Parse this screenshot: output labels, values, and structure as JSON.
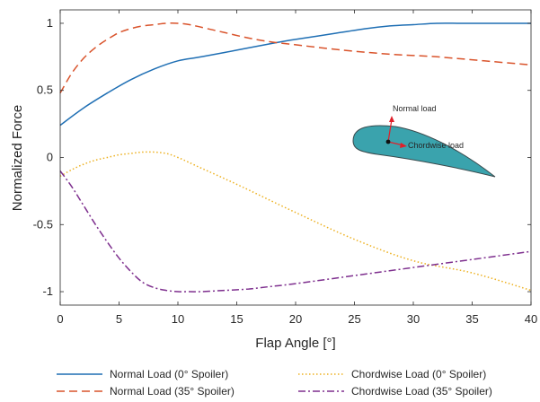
{
  "chart_data": {
    "type": "line",
    "xlabel": "Flap Angle [°]",
    "ylabel": "Normalized Force",
    "xlim": [
      0,
      40
    ],
    "ylim": [
      -1.1,
      1.1
    ],
    "xticks": [
      0,
      5,
      10,
      15,
      20,
      25,
      30,
      35,
      40
    ],
    "xtick_labels": [
      "0",
      "5",
      "10",
      "15",
      "20",
      "25",
      "30",
      "35",
      "40"
    ],
    "yticks": [
      1,
      0.5,
      0,
      -0.5,
      -1
    ],
    "ytick_labels": [
      "1",
      "0.5",
      "0",
      "-0.5",
      "-1"
    ],
    "grid": false,
    "legend_position": "bottom",
    "series": [
      {
        "name": "Normal Load (0° Spoiler)",
        "color": "#1f6fb4",
        "dash": "solid",
        "x": [
          0,
          2,
          4,
          6,
          8,
          10,
          12,
          15,
          18,
          20,
          23,
          26,
          28,
          30,
          32,
          34,
          36,
          38,
          40
        ],
        "y": [
          0.24,
          0.37,
          0.48,
          0.58,
          0.66,
          0.72,
          0.75,
          0.8,
          0.85,
          0.88,
          0.92,
          0.96,
          0.98,
          0.99,
          1.0,
          1.0,
          1.0,
          1.0,
          1.0
        ]
      },
      {
        "name": "Normal Load (35° Spoiler)",
        "color": "#d9532b",
        "dash": "dashed",
        "x": [
          0,
          1,
          2,
          3,
          4,
          5,
          6,
          7,
          8,
          9,
          10,
          11,
          12,
          14,
          16,
          18,
          20,
          24,
          28,
          32,
          36,
          40
        ],
        "y": [
          0.48,
          0.63,
          0.74,
          0.82,
          0.88,
          0.93,
          0.96,
          0.98,
          0.99,
          1.0,
          1.0,
          0.99,
          0.97,
          0.93,
          0.89,
          0.86,
          0.84,
          0.8,
          0.77,
          0.75,
          0.72,
          0.69
        ]
      },
      {
        "name": "Chordwise Load (0° Spoiler)",
        "color": "#edb120",
        "dash": "dotted",
        "x": [
          0,
          1,
          2,
          3,
          4,
          5,
          6,
          7,
          8,
          9,
          10,
          12,
          15,
          20,
          25,
          30,
          35,
          40
        ],
        "y": [
          -0.14,
          -0.09,
          -0.05,
          -0.02,
          0.0,
          0.02,
          0.03,
          0.04,
          0.04,
          0.03,
          0.0,
          -0.08,
          -0.2,
          -0.41,
          -0.61,
          -0.77,
          -0.86,
          -0.99
        ]
      },
      {
        "name": "Chordwise Load (35° Spoiler)",
        "color": "#7e2f8e",
        "dash": "dashdot",
        "x": [
          0,
          1,
          2,
          3,
          4,
          5,
          6,
          7,
          8,
          9,
          10,
          11,
          12,
          14,
          16,
          18,
          20,
          25,
          30,
          35,
          40
        ],
        "y": [
          -0.1,
          -0.22,
          -0.36,
          -0.5,
          -0.63,
          -0.75,
          -0.85,
          -0.93,
          -0.97,
          -0.99,
          -1.0,
          -1.0,
          -1.0,
          -0.99,
          -0.98,
          -0.96,
          -0.94,
          -0.88,
          -0.82,
          -0.76,
          -0.7
        ]
      }
    ],
    "annotations": {
      "normal_label": "Normal load",
      "chordwise_label": "Chordwise load"
    }
  }
}
